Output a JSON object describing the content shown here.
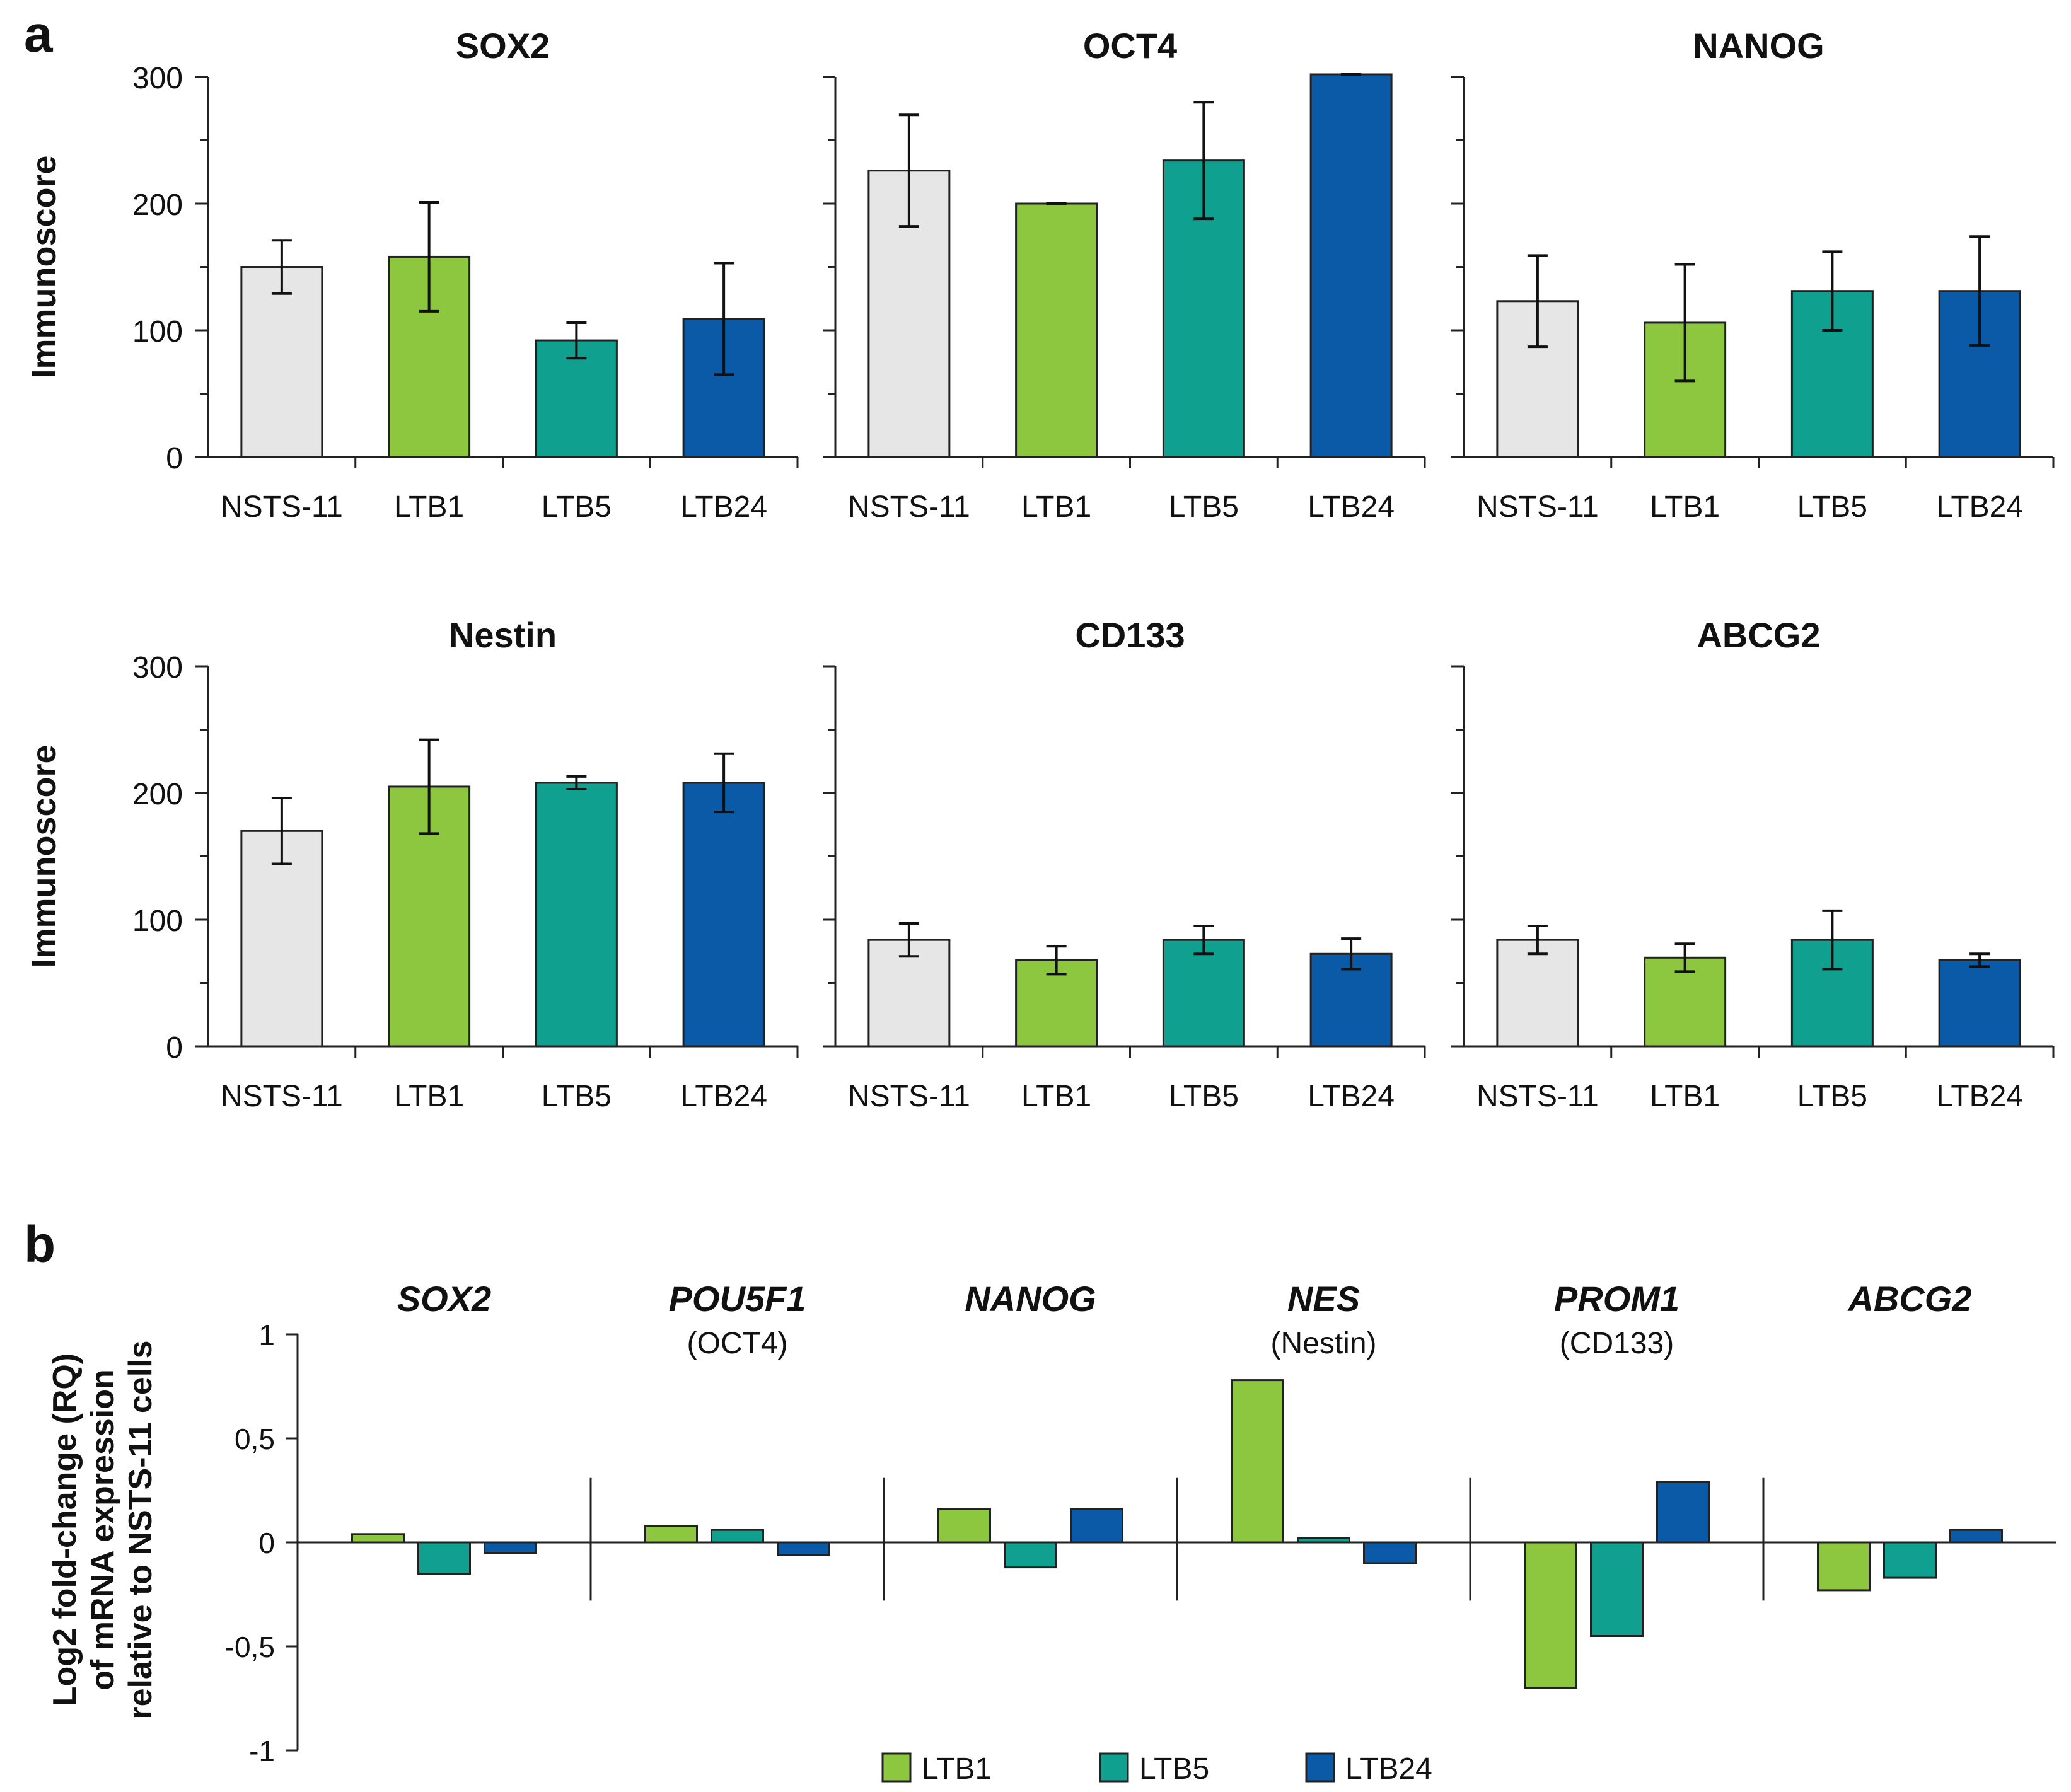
{
  "panel_labels": {
    "a": "a",
    "b": "b"
  },
  "colors": {
    "NSTS-11": "#e6e6e6",
    "LTB1": "#8dc63f",
    "LTB5": "#0fa08f",
    "LTB24": "#0a5aa8"
  },
  "chart_data": [
    {
      "type": "bar",
      "title": "SOX2",
      "ylabel": "Immunoscore",
      "ylim": [
        0,
        300
      ],
      "yticks": [
        "0",
        "100",
        "200",
        "300"
      ],
      "categories": [
        "NSTS-11",
        "LTB1",
        "LTB5",
        "LTB24"
      ],
      "values": [
        150,
        158,
        92,
        109
      ],
      "errors": [
        21,
        43,
        14,
        44
      ]
    },
    {
      "type": "bar",
      "title": "OCT4",
      "ylabel": "",
      "ylim": [
        0,
        300
      ],
      "yticks": [],
      "categories": [
        "NSTS-11",
        "LTB1",
        "LTB5",
        "LTB24"
      ],
      "values": [
        226,
        200,
        234,
        302
      ],
      "errors": [
        44,
        0,
        46,
        0
      ]
    },
    {
      "type": "bar",
      "title": "NANOG",
      "ylabel": "",
      "ylim": [
        0,
        300
      ],
      "yticks": [],
      "categories": [
        "NSTS-11",
        "LTB1",
        "LTB5",
        "LTB24"
      ],
      "values": [
        123,
        106,
        131,
        131
      ],
      "errors": [
        36,
        46,
        31,
        43
      ]
    },
    {
      "type": "bar",
      "title": "Nestin",
      "ylabel": "Immunoscore",
      "ylim": [
        0,
        300
      ],
      "yticks": [
        "0",
        "100",
        "200",
        "300"
      ],
      "categories": [
        "NSTS-11",
        "LTB1",
        "LTB5",
        "LTB24"
      ],
      "values": [
        170,
        205,
        208,
        208
      ],
      "errors": [
        26,
        37,
        5,
        23
      ]
    },
    {
      "type": "bar",
      "title": "CD133",
      "ylabel": "",
      "ylim": [
        0,
        300
      ],
      "yticks": [],
      "categories": [
        "NSTS-11",
        "LTB1",
        "LTB5",
        "LTB24"
      ],
      "values": [
        84,
        68,
        84,
        73
      ],
      "errors": [
        13,
        11,
        11,
        12
      ]
    },
    {
      "type": "bar",
      "title": "ABCG2",
      "ylabel": "",
      "ylim": [
        0,
        300
      ],
      "yticks": [],
      "categories": [
        "NSTS-11",
        "LTB1",
        "LTB5",
        "LTB24"
      ],
      "values": [
        84,
        70,
        84,
        68
      ],
      "errors": [
        11,
        11,
        23,
        5
      ]
    },
    {
      "type": "bar",
      "ylabel_lines": [
        "Log2 fold-change (RQ)",
        "of mRNA expression",
        "relative to NSTS-11 cells"
      ],
      "ylim": [
        -1,
        1
      ],
      "yticks": [
        "-1",
        "-0,5",
        "0",
        "0,5",
        "1"
      ],
      "groups": [
        {
          "gene": "SOX2",
          "protein": ""
        },
        {
          "gene": "POU5F1",
          "protein": "(OCT4)"
        },
        {
          "gene": "NANOG",
          "protein": ""
        },
        {
          "gene": "NES",
          "protein": "(Nestin)"
        },
        {
          "gene": "PROM1",
          "protein": "(CD133)"
        },
        {
          "gene": "ABCG2",
          "protein": ""
        }
      ],
      "series": [
        {
          "name": "LTB1",
          "values": [
            0.04,
            0.08,
            0.16,
            0.78,
            -0.7,
            -0.23
          ]
        },
        {
          "name": "LTB5",
          "values": [
            -0.15,
            0.06,
            -0.12,
            0.02,
            -0.45,
            -0.17
          ]
        },
        {
          "name": "LTB24",
          "values": [
            -0.05,
            -0.06,
            0.16,
            -0.1,
            0.29,
            0.06
          ]
        }
      ],
      "legend": [
        "LTB1",
        "LTB5",
        "LTB24"
      ]
    }
  ]
}
